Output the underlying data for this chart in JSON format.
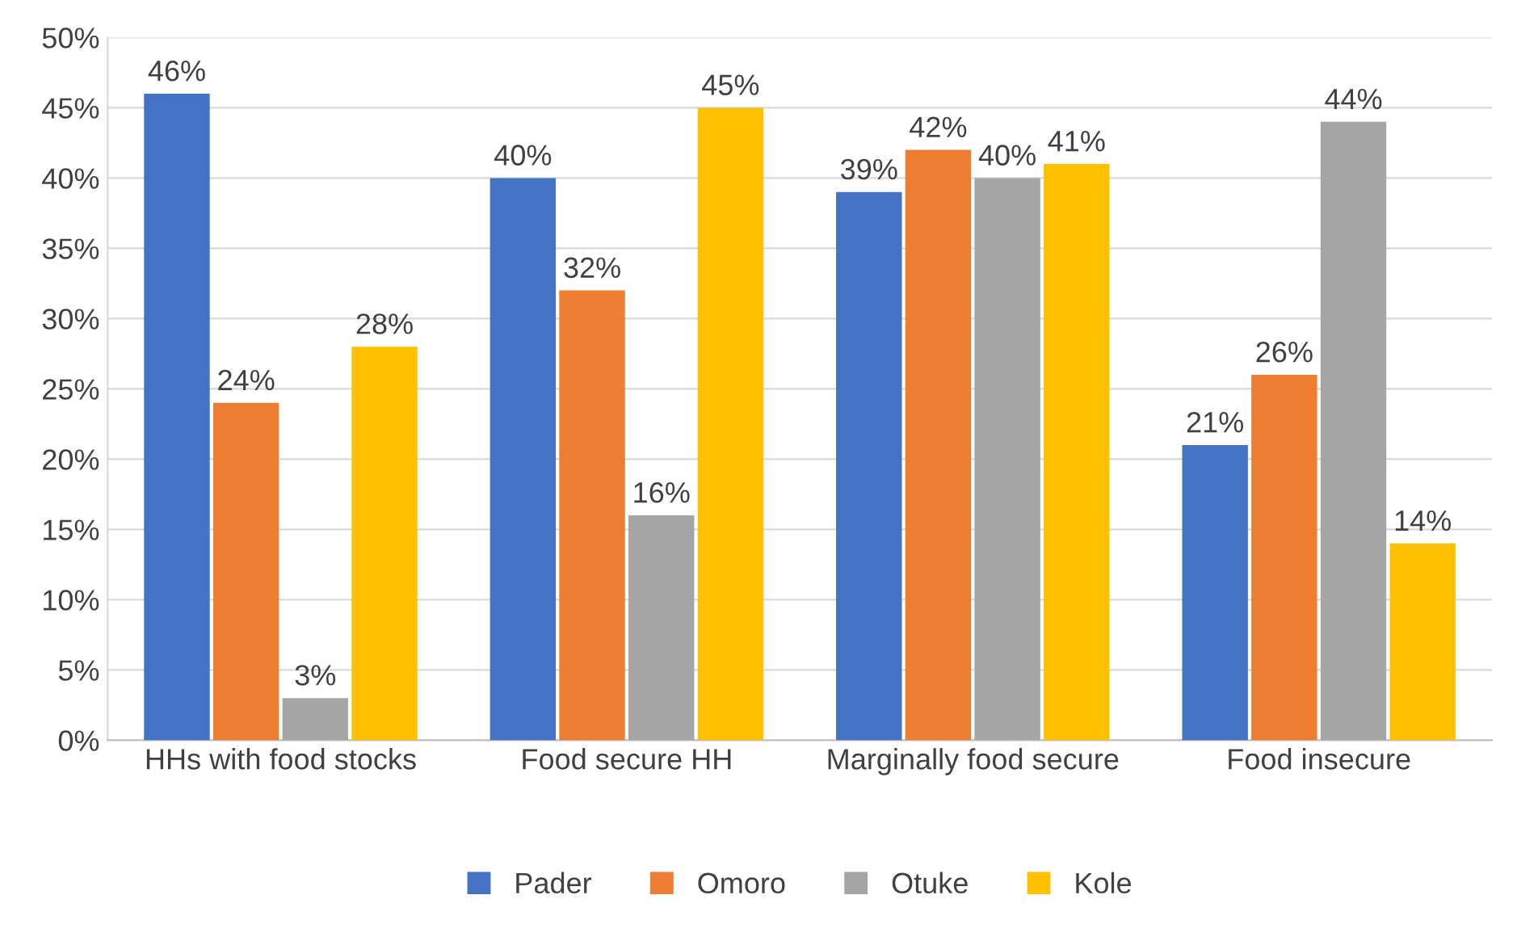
{
  "chart_data": {
    "type": "bar",
    "categories": [
      "HHs with food stocks",
      "Food secure HH",
      "Marginally food secure",
      "Food insecure"
    ],
    "series": [
      {
        "name": "Pader",
        "color": "#4472c4",
        "values": [
          46,
          40,
          39,
          21
        ]
      },
      {
        "name": "Omoro",
        "color": "#ed7d31",
        "values": [
          24,
          32,
          42,
          26
        ]
      },
      {
        "name": "Otuke",
        "color": "#a5a5a5",
        "values": [
          3,
          16,
          40,
          44
        ]
      },
      {
        "name": "Kole",
        "color": "#ffc000",
        "values": [
          28,
          45,
          41,
          14
        ]
      }
    ],
    "ylim": [
      0,
      50
    ],
    "yticks": [
      {
        "value": 0,
        "label": "0%"
      },
      {
        "value": 5,
        "label": "5%"
      },
      {
        "value": 10,
        "label": "10%"
      },
      {
        "value": 15,
        "label": "15%"
      },
      {
        "value": 20,
        "label": "20%"
      },
      {
        "value": 25,
        "label": "25%"
      },
      {
        "value": 30,
        "label": "30%"
      },
      {
        "value": 35,
        "label": "35%"
      },
      {
        "value": 40,
        "label": "40%"
      },
      {
        "value": 45,
        "label": "45%"
      },
      {
        "value": 50,
        "label": "50%"
      }
    ],
    "value_labels": [
      [
        "46%",
        "40%",
        "39%",
        "21%"
      ],
      [
        "24%",
        "32%",
        "42%",
        "26%"
      ],
      [
        "3%",
        "16%",
        "40%",
        "44%"
      ],
      [
        "28%",
        "45%",
        "41%",
        "14%"
      ]
    ],
    "grid": "y",
    "legend": "bottom"
  }
}
